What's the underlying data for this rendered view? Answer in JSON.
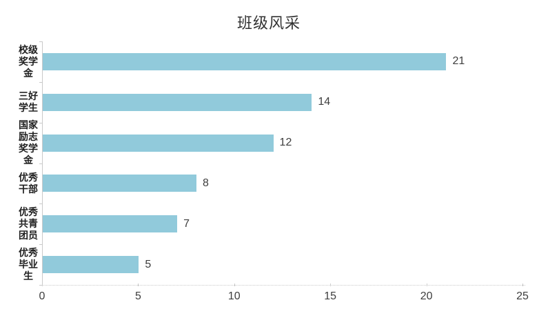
{
  "chart_data": {
    "type": "bar",
    "orientation": "horizontal",
    "title": "班级风采",
    "categories": [
      "校级奖学金",
      "三好学生",
      "国家励志奖学金",
      "优秀干部",
      "优秀共青团员",
      "优秀毕业生"
    ],
    "values": [
      21,
      14,
      12,
      8,
      7,
      5
    ],
    "x_ticks": [
      "0",
      "5",
      "10",
      "15",
      "20",
      "25"
    ],
    "xlim": [
      0,
      25
    ],
    "grid": false,
    "legend": false,
    "value_labels_shown": true,
    "category_label_wrap_chars_per_line": 2,
    "bar_color": "#91cadb",
    "axis_line_color": "#c9c9c9",
    "title_color": "#333333",
    "category_label_color": "#1f1f1f",
    "tick_label_color": "#3d3d3d",
    "value_label_color": "#3d3d3d",
    "background_color": "#ffffff"
  }
}
